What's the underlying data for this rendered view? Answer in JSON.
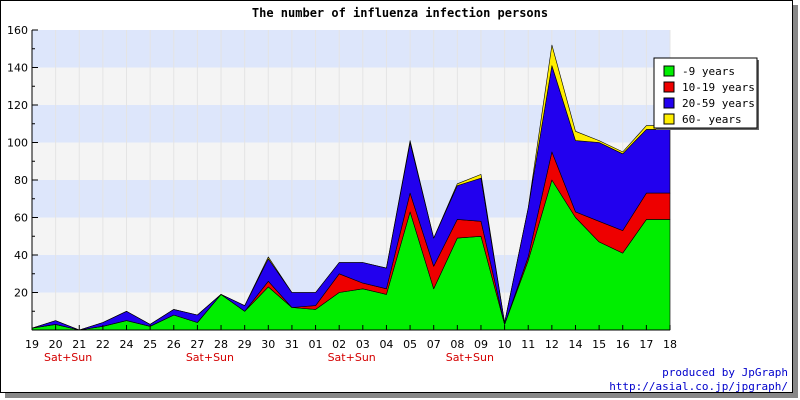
{
  "chart_data": {
    "type": "area",
    "stacked": true,
    "title": "The number of influenza infection persons",
    "categories": [
      "19",
      "20",
      "21",
      "22",
      "24",
      "25",
      "26",
      "27",
      "28",
      "29",
      "30",
      "31",
      "01",
      "02",
      "03",
      "04",
      "05",
      "07",
      "08",
      "09",
      "10",
      "11",
      "12",
      "14",
      "15",
      "16",
      "17",
      "18"
    ],
    "weekend_label": "Sat+Sun",
    "weekend_categories": [
      "20",
      "27",
      "02",
      "08"
    ],
    "ylim": [
      0,
      160
    ],
    "yticks": [
      20,
      40,
      60,
      80,
      100,
      120,
      140,
      160
    ],
    "grid": true,
    "legend_position": "top-right",
    "series": [
      {
        "name": "-9 years",
        "color": "#00ee00",
        "values": [
          1,
          3,
          0,
          2,
          5,
          2,
          8,
          4,
          19,
          10,
          23,
          12,
          11,
          20,
          22,
          19,
          63,
          22,
          49,
          50,
          3,
          37,
          80,
          60,
          47,
          41,
          59,
          59
        ]
      },
      {
        "name": "10-19 years",
        "color": "#ee0000",
        "values": [
          0,
          0,
          0,
          0,
          0,
          0,
          0,
          0,
          0,
          0,
          3,
          0,
          2,
          10,
          3,
          3,
          10,
          12,
          10,
          8,
          0,
          2,
          15,
          3,
          11,
          12,
          14,
          14
        ]
      },
      {
        "name": "20-59 years",
        "color": "#2200ee",
        "values": [
          0,
          2,
          0,
          2,
          5,
          1,
          3,
          4,
          0,
          3,
          12,
          8,
          7,
          6,
          11,
          11,
          27,
          15,
          18,
          23,
          1,
          26,
          46,
          38,
          42,
          41,
          34,
          34
        ]
      },
      {
        "name": "60- years",
        "color": "#ffee00",
        "values": [
          0,
          0,
          0,
          0,
          0,
          0,
          0,
          0,
          0,
          0,
          1,
          0,
          0,
          0,
          0,
          0,
          1,
          0,
          1,
          2,
          0,
          0,
          11,
          5,
          1,
          1,
          2,
          2
        ]
      }
    ]
  },
  "credit": {
    "line1": "produced by JpGraph",
    "line2": "http://asial.co.jp/jpgraph/"
  }
}
